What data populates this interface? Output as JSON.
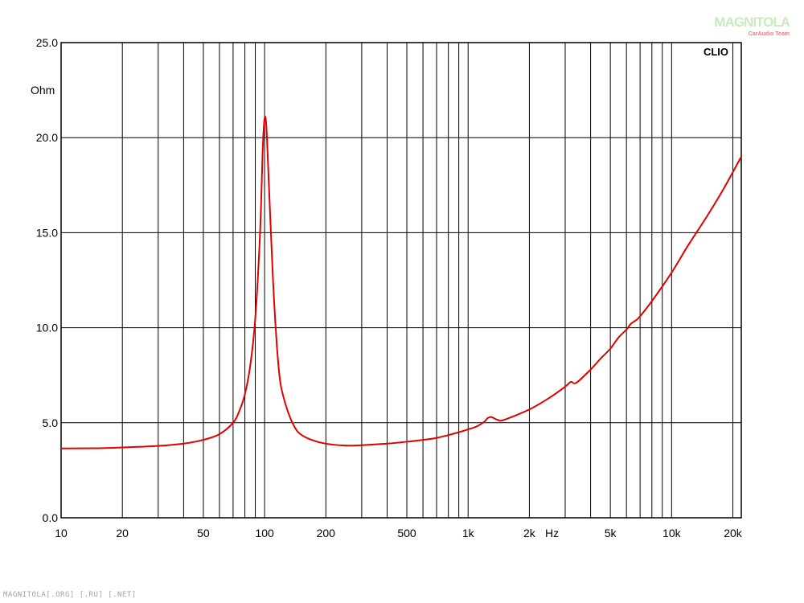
{
  "chart_data": {
    "type": "line",
    "brand": "CLIO",
    "x_scale": "log",
    "xlim": [
      10,
      22000
    ],
    "ylim": [
      0,
      25
    ],
    "grid": true,
    "ylabel": "Ohm",
    "xunit": "Hz",
    "x_tick_labels": [
      {
        "value": 10,
        "label": "10"
      },
      {
        "value": 20,
        "label": "20"
      },
      {
        "value": 50,
        "label": "50"
      },
      {
        "value": 100,
        "label": "100"
      },
      {
        "value": 200,
        "label": "200"
      },
      {
        "value": 500,
        "label": "500"
      },
      {
        "value": 1000,
        "label": "1k"
      },
      {
        "value": 2000,
        "label": "2k"
      },
      {
        "value": 5000,
        "label": "5k"
      },
      {
        "value": 10000,
        "label": "10k"
      },
      {
        "value": 20000,
        "label": "20k"
      }
    ],
    "y_tick_labels": [
      {
        "value": 0,
        "label": "0.0"
      },
      {
        "value": 5,
        "label": "5.0"
      },
      {
        "value": 10,
        "label": "10.0"
      },
      {
        "value": 15,
        "label": "15.0"
      },
      {
        "value": 20,
        "label": "20.0"
      },
      {
        "value": 25,
        "label": "25.0"
      }
    ],
    "series": [
      {
        "color": "#e00000",
        "x": [
          10,
          15,
          20,
          30,
          40,
          50,
          60,
          70,
          75,
          80,
          85,
          90,
          95,
          98,
          100,
          102,
          105,
          110,
          115,
          120,
          130,
          140,
          150,
          170,
          200,
          250,
          300,
          400,
          500,
          600,
          700,
          800,
          900,
          1000,
          1100,
          1200,
          1250,
          1300,
          1400,
          1500,
          2000,
          2500,
          3000,
          3200,
          3400,
          4000,
          4500,
          5000,
          5500,
          6000,
          6300,
          6700,
          7000,
          8000,
          10000,
          12000,
          15000,
          18000,
          22000
        ],
        "y": [
          3.65,
          3.66,
          3.7,
          3.78,
          3.9,
          4.1,
          4.4,
          5.0,
          5.6,
          6.5,
          8.0,
          10.5,
          15.0,
          19.5,
          21.0,
          20.6,
          17.5,
          12.5,
          9.0,
          7.0,
          5.6,
          4.8,
          4.4,
          4.1,
          3.9,
          3.8,
          3.82,
          3.9,
          4.0,
          4.1,
          4.2,
          4.35,
          4.5,
          4.65,
          4.8,
          5.05,
          5.25,
          5.3,
          5.15,
          5.15,
          5.7,
          6.3,
          6.9,
          7.15,
          7.1,
          7.8,
          8.4,
          8.9,
          9.5,
          9.9,
          10.2,
          10.4,
          10.6,
          11.4,
          12.9,
          14.3,
          15.9,
          17.3,
          19.0
        ]
      }
    ]
  },
  "watermark": {
    "logo_text": "MAGNITOLA",
    "logo_subtext": "CarAudio Team",
    "footer_text": "MAGNITOLA[.ORG] [.RU] [.NET]"
  },
  "colors": {
    "grid": "#000000",
    "curve": "#e00000",
    "background": "#ffffff"
  }
}
